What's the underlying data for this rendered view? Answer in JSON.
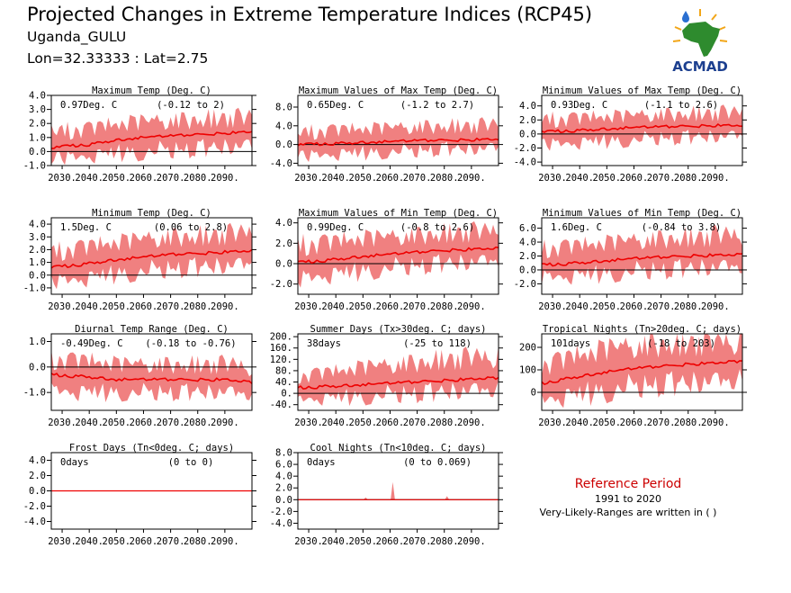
{
  "header": {
    "title": "Projected Changes in Extreme Temperature Indices (RCP45)",
    "location": "Uganda_GULU",
    "coords": "Lon=32.33333 : Lat=2.75"
  },
  "logo": {
    "text": "ACMAD",
    "icon": "africa-map-logo-icon",
    "colors": {
      "text": "#1c3f8f",
      "map": "#2e8b2e",
      "sun": "#f2a618",
      "drop": "#2a6fd1"
    }
  },
  "reference": {
    "title": "Reference Period",
    "years": "1991 to 2020",
    "note": "Very-Likely-Ranges are written in ( )"
  },
  "colors": {
    "band": "#f08080",
    "line": "#ee0000",
    "zero": "#000000"
  },
  "x_ticks": [
    "2030.",
    "2040.",
    "2050.",
    "2060.",
    "2070.",
    "2080.",
    "2090."
  ],
  "chart_data": [
    {
      "type": "line",
      "title": "Maximum Temp (Deg. C)",
      "mean_label": "0.97Deg. C",
      "range_label": "(-0.12 to 2)",
      "xlim": [
        2026,
        2100
      ],
      "ylim": [
        -1.0,
        4.0
      ],
      "y_ticks": [
        "4.0",
        "3.0",
        "2.0",
        "1.0",
        "0.0",
        "-1.0"
      ],
      "y_tick_values": [
        4,
        3,
        2,
        1,
        0,
        -1
      ],
      "x": [
        2026,
        2040,
        2050,
        2060,
        2070,
        2080,
        2090,
        2100
      ],
      "mean": [
        0.3,
        0.5,
        0.8,
        1.0,
        1.1,
        1.2,
        1.3,
        1.4
      ],
      "lower": [
        -0.5,
        -0.3,
        -0.1,
        0.0,
        0.1,
        0.2,
        0.3,
        0.4
      ],
      "upper": [
        1.4,
        1.6,
        1.9,
        2.1,
        2.2,
        2.3,
        2.4,
        2.4
      ]
    },
    {
      "type": "line",
      "title": "Maximum Values of Max Temp (Deg. C)",
      "mean_label": "0.65Deg. C",
      "range_label": "(-1.2 to 2.7)",
      "xlim": [
        2026,
        2100
      ],
      "ylim": [
        -4.5,
        10.5
      ],
      "y_ticks": [
        "8.0",
        "4.0",
        "0.0",
        "-4.0"
      ],
      "y_tick_values": [
        8,
        4,
        0,
        -4
      ],
      "x": [
        2026,
        2040,
        2050,
        2060,
        2070,
        2080,
        2090,
        2100
      ],
      "mean": [
        0.0,
        0.2,
        0.4,
        0.6,
        0.8,
        0.9,
        1.0,
        1.1
      ],
      "lower": [
        -2.5,
        -2.0,
        -1.8,
        -1.5,
        -1.3,
        -1.0,
        -1.0,
        -0.8
      ],
      "upper": [
        2.5,
        3.0,
        3.2,
        3.5,
        3.8,
        4.0,
        4.0,
        4.2
      ]
    },
    {
      "type": "line",
      "title": "Minimum Values of Max Temp (Deg. C)",
      "mean_label": "0.93Deg. C",
      "range_label": "(-1.1 to 2.6)",
      "xlim": [
        2026,
        2100
      ],
      "ylim": [
        -4.5,
        5.5
      ],
      "y_ticks": [
        "4.0",
        "2.0",
        "0.0",
        "-2.0",
        "-4.0"
      ],
      "y_tick_values": [
        4,
        2,
        0,
        -2,
        -4
      ],
      "x": [
        2026,
        2040,
        2050,
        2060,
        2070,
        2080,
        2090,
        2100
      ],
      "mean": [
        0.3,
        0.5,
        0.7,
        0.9,
        1.0,
        1.1,
        1.2,
        1.2
      ],
      "lower": [
        -1.5,
        -1.2,
        -1.0,
        -0.8,
        -0.6,
        -0.5,
        -0.4,
        -0.3
      ],
      "upper": [
        2.0,
        2.2,
        2.4,
        2.6,
        2.8,
        2.9,
        3.0,
        3.0
      ]
    },
    {
      "type": "line",
      "title": "Minimum Temp (Deg. C)",
      "mean_label": "1.5Deg. C",
      "range_label": "(0.06 to 2.8)",
      "xlim": [
        2026,
        2100
      ],
      "ylim": [
        -1.5,
        4.5
      ],
      "y_ticks": [
        "4.0",
        "3.0",
        "2.0",
        "1.0",
        "0.0",
        "-1.0"
      ],
      "y_tick_values": [
        4,
        3,
        2,
        1,
        0,
        -1
      ],
      "x": [
        2026,
        2040,
        2050,
        2060,
        2070,
        2080,
        2090,
        2100
      ],
      "mean": [
        0.6,
        0.9,
        1.2,
        1.4,
        1.6,
        1.7,
        1.8,
        1.9
      ],
      "lower": [
        -0.5,
        -0.2,
        0.1,
        0.3,
        0.5,
        0.6,
        0.7,
        0.8
      ],
      "upper": [
        1.8,
        2.2,
        2.5,
        2.8,
        3.0,
        3.1,
        3.2,
        3.3
      ]
    },
    {
      "type": "line",
      "title": "Maximum Values of Min Temp (Deg. C)",
      "mean_label": "0.99Deg. C",
      "range_label": "(-0.8 to 2.6)",
      "xlim": [
        2026,
        2100
      ],
      "ylim": [
        -3.0,
        4.5
      ],
      "y_ticks": [
        "4.0",
        "2.0",
        "0.0",
        "-2.0"
      ],
      "y_tick_values": [
        4,
        2,
        0,
        -2
      ],
      "x": [
        2026,
        2040,
        2050,
        2060,
        2070,
        2080,
        2090,
        2100
      ],
      "mean": [
        0.1,
        0.4,
        0.7,
        0.9,
        1.1,
        1.3,
        1.4,
        1.5
      ],
      "lower": [
        -1.5,
        -1.0,
        -0.7,
        -0.4,
        -0.2,
        0.0,
        0.1,
        0.2
      ],
      "upper": [
        1.8,
        2.1,
        2.4,
        2.6,
        2.8,
        3.0,
        3.1,
        3.2
      ]
    },
    {
      "type": "line",
      "title": "Minimum Values of Min Temp (Deg. C)",
      "mean_label": "1.6Deg. C",
      "range_label": "(-0.84 to 3.8)",
      "xlim": [
        2026,
        2100
      ],
      "ylim": [
        -3.5,
        7.5
      ],
      "y_ticks": [
        "6.0",
        "4.0",
        "2.0",
        "0.0",
        "-2.0"
      ],
      "y_tick_values": [
        6,
        4,
        2,
        0,
        -2
      ],
      "x": [
        2026,
        2040,
        2050,
        2060,
        2070,
        2080,
        2090,
        2100
      ],
      "mean": [
        0.7,
        1.0,
        1.3,
        1.6,
        1.8,
        2.0,
        2.1,
        2.2
      ],
      "lower": [
        -1.0,
        -0.8,
        -0.5,
        -0.2,
        0.0,
        0.2,
        0.3,
        0.4
      ],
      "upper": [
        3.0,
        3.4,
        3.8,
        4.2,
        4.5,
        4.7,
        4.9,
        5.0
      ]
    },
    {
      "type": "line",
      "title": "Diurnal Temp Range (Deg. C)",
      "mean_label": "-0.49Deg. C",
      "range_label": "(-0.18 to -0.76)",
      "xlim": [
        2026,
        2100
      ],
      "ylim": [
        -1.7,
        1.3
      ],
      "y_ticks": [
        "1.0",
        "0.0",
        "-1.0"
      ],
      "y_tick_values": [
        1,
        0,
        -1
      ],
      "x": [
        2026,
        2040,
        2050,
        2060,
        2070,
        2080,
        2090,
        2100
      ],
      "mean": [
        -0.3,
        -0.4,
        -0.5,
        -0.5,
        -0.5,
        -0.5,
        -0.5,
        -0.6
      ],
      "lower": [
        -0.9,
        -1.0,
        -1.0,
        -1.0,
        -1.0,
        -1.0,
        -1.0,
        -1.1
      ],
      "upper": [
        0.3,
        0.2,
        0.1,
        0.1,
        0.1,
        0.1,
        0.1,
        0.0
      ]
    },
    {
      "type": "line",
      "title": "Summer Days (Tx>30deg. C; days)",
      "mean_label": "38days",
      "range_label": "(-25 to 118)",
      "xlim": [
        2026,
        2100
      ],
      "ylim": [
        -60,
        210
      ],
      "y_ticks": [
        "200.",
        "160.",
        "120.",
        "80.",
        "40.",
        "0.",
        "-40."
      ],
      "y_tick_values": [
        200,
        160,
        120,
        80,
        40,
        0,
        -40
      ],
      "x": [
        2026,
        2040,
        2050,
        2060,
        2070,
        2080,
        2090,
        2100
      ],
      "mean": [
        20,
        25,
        30,
        35,
        40,
        45,
        50,
        55
      ],
      "lower": [
        -20,
        -15,
        -10,
        -5,
        0,
        5,
        8,
        10
      ],
      "upper": [
        60,
        75,
        90,
        100,
        110,
        120,
        125,
        130
      ]
    },
    {
      "type": "line",
      "title": "Tropical Nights (Tn>20deg. C; days)",
      "mean_label": "101days",
      "range_label": "(-18 to 203)",
      "xlim": [
        2026,
        2100
      ],
      "ylim": [
        -80,
        260
      ],
      "y_ticks": [
        "200",
        "100",
        "0"
      ],
      "y_tick_values": [
        200,
        100,
        0
      ],
      "x": [
        2026,
        2040,
        2050,
        2060,
        2070,
        2080,
        2090,
        2100
      ],
      "mean": [
        40,
        70,
        90,
        105,
        115,
        125,
        130,
        140
      ],
      "lower": [
        -30,
        -10,
        10,
        25,
        35,
        40,
        45,
        50
      ],
      "upper": [
        120,
        160,
        190,
        205,
        215,
        220,
        225,
        230
      ]
    },
    {
      "type": "line",
      "title": "Frost Days (Tn<0deg. C; days)",
      "mean_label": "0days",
      "range_label": "(0 to 0)",
      "xlim": [
        2026,
        2100
      ],
      "ylim": [
        -5,
        5
      ],
      "y_ticks": [
        "4.0",
        "2.0",
        "0.0",
        "-2.0",
        "-4.0"
      ],
      "y_tick_values": [
        4,
        2,
        0,
        -2,
        -4
      ],
      "x": [
        2026,
        2100
      ],
      "mean": [
        0,
        0
      ],
      "lower": [
        0,
        0
      ],
      "upper": [
        0,
        0
      ]
    },
    {
      "type": "line",
      "title": "Cool Nights (Tn<10deg. C; days)",
      "mean_label": "0days",
      "range_label": "(0 to 0.069)",
      "xlim": [
        2026,
        2100
      ],
      "ylim": [
        -5,
        8
      ],
      "y_ticks": [
        "8.0",
        "6.0",
        "4.0",
        "2.0",
        "0.0",
        "-2.0",
        "-4.0"
      ],
      "y_tick_values": [
        8,
        6,
        4,
        2,
        0,
        -2,
        -4
      ],
      "x": [
        2026,
        2100
      ],
      "mean": [
        0,
        0
      ],
      "lower": [
        0,
        0
      ],
      "upper": [
        0,
        0
      ]
    }
  ]
}
